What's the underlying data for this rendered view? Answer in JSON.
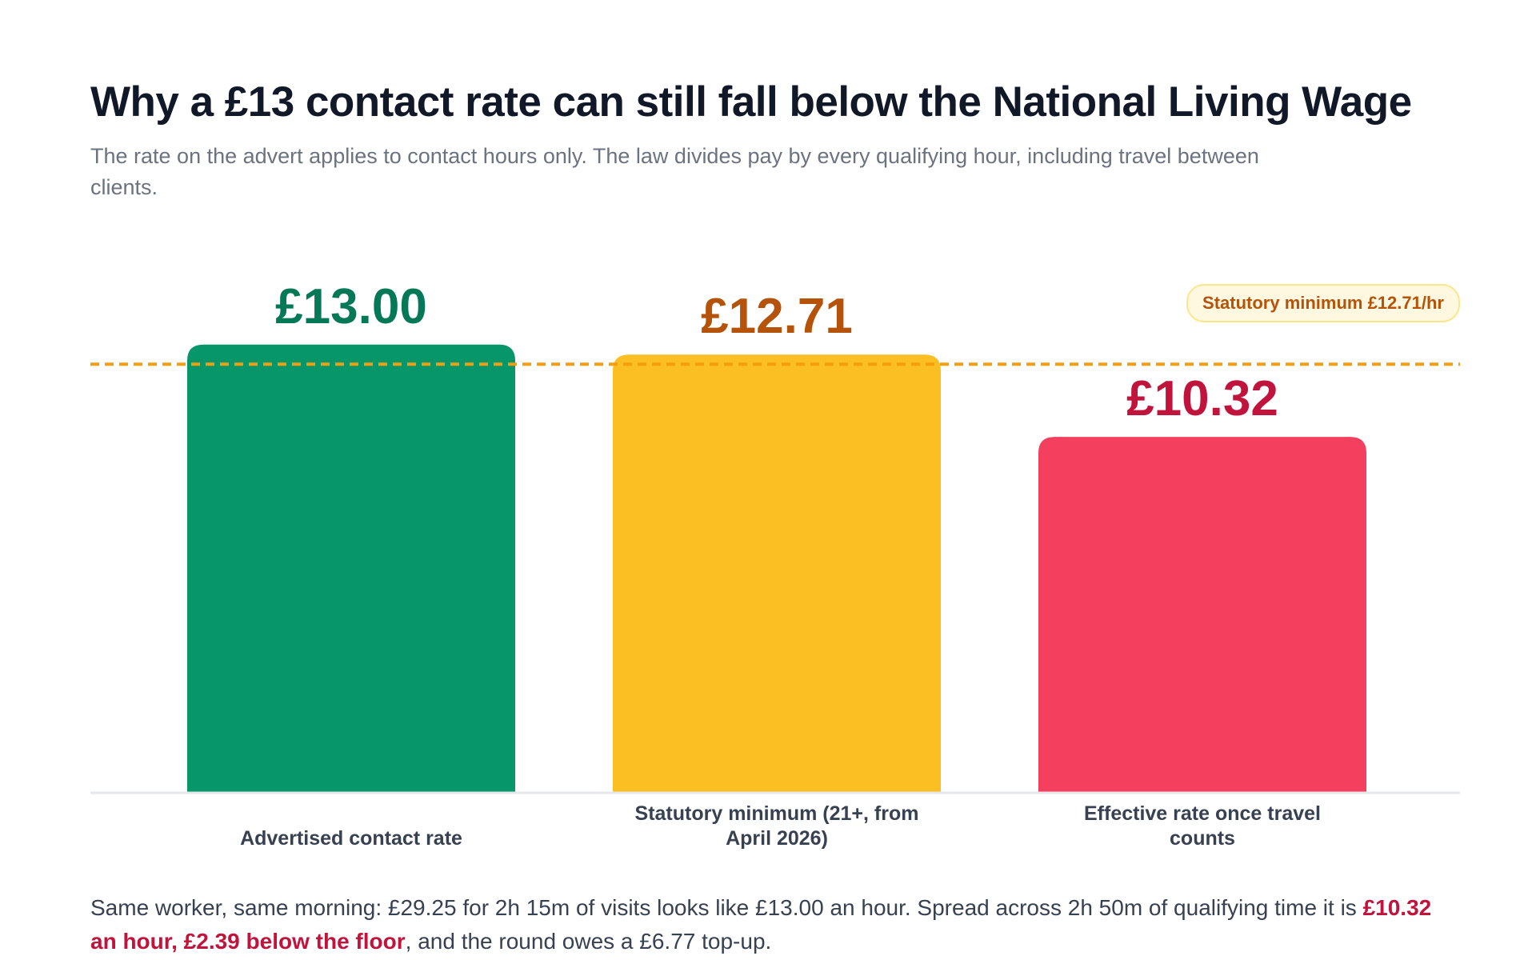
{
  "title": "Why a £13 contact rate can still fall below the National Living Wage",
  "subtitle": "The rate on the advert applies to contact hours only. The law divides pay by every qualifying hour, including travel between clients.",
  "footnote": {
    "before": "Same worker, same morning: £29.25 for 2h 15m of visits looks like £13.00 an hour. Spread across 2h 50m of qualifying time it is ",
    "emphasis": "£10.32 an hour, £2.39 below the floor",
    "after": ", and the round owes a £6.77 top-up."
  },
  "chart_data": {
    "type": "bar",
    "categories": [
      "Advertised contact rate",
      "Statutory minimum (21+, from April 2026)",
      "Effective rate once travel counts"
    ],
    "values": [
      13.0,
      12.71,
      10.32
    ],
    "value_labels": [
      "£13.00",
      "£12.71",
      "£10.32"
    ],
    "bar_colors": [
      "#079669",
      "#fbbf24",
      "#f43f5e"
    ],
    "label_colors": [
      "#047857",
      "#b45309",
      "#c0143c"
    ],
    "reference_line": {
      "value": 12.71,
      "label": "Statutory minimum £12.71/hr",
      "color": "#f59e0b",
      "style": "dashed"
    },
    "ylim": [
      0,
      13.6
    ],
    "grid": false,
    "xlabel": "",
    "ylabel": ""
  }
}
